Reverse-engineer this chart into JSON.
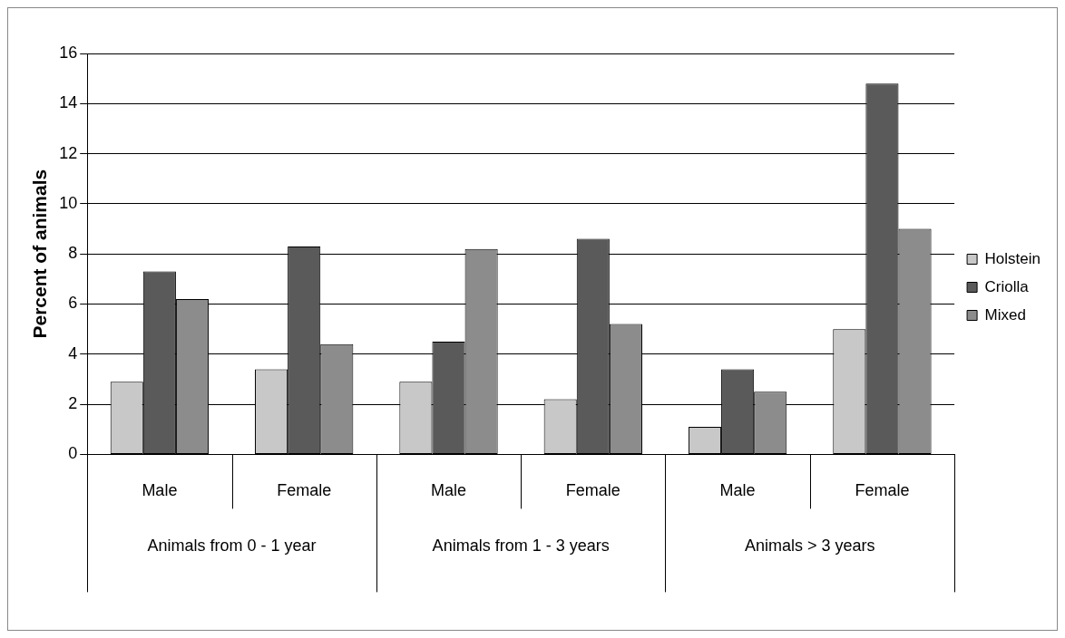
{
  "chart_data": {
    "type": "bar",
    "ylabel": "Percent of animals",
    "categories": [
      "Male",
      "Female",
      "Male",
      "Female",
      "Male",
      "Female"
    ],
    "annotations": [
      "Animals from 0 - 1 year",
      "Animals from 1 - 3 years",
      "Animals > 3 years"
    ],
    "series": [
      {
        "name": "Holstein",
        "color": "#c8c8c8",
        "values": [
          2.9,
          3.4,
          2.9,
          2.2,
          1.1,
          5.0
        ]
      },
      {
        "name": "Criolla",
        "color": "#5a5a5a",
        "values": [
          7.3,
          8.3,
          4.5,
          8.6,
          3.4,
          14.8
        ]
      },
      {
        "name": "Mixed",
        "color": "#8c8c8c",
        "values": [
          6.2,
          4.4,
          8.2,
          5.2,
          2.5,
          9.0
        ]
      }
    ],
    "ylim": [
      0,
      16
    ],
    "yticks": [
      0,
      2,
      4,
      6,
      8,
      10,
      12,
      14,
      16
    ],
    "grid": "y",
    "legend": "right"
  }
}
